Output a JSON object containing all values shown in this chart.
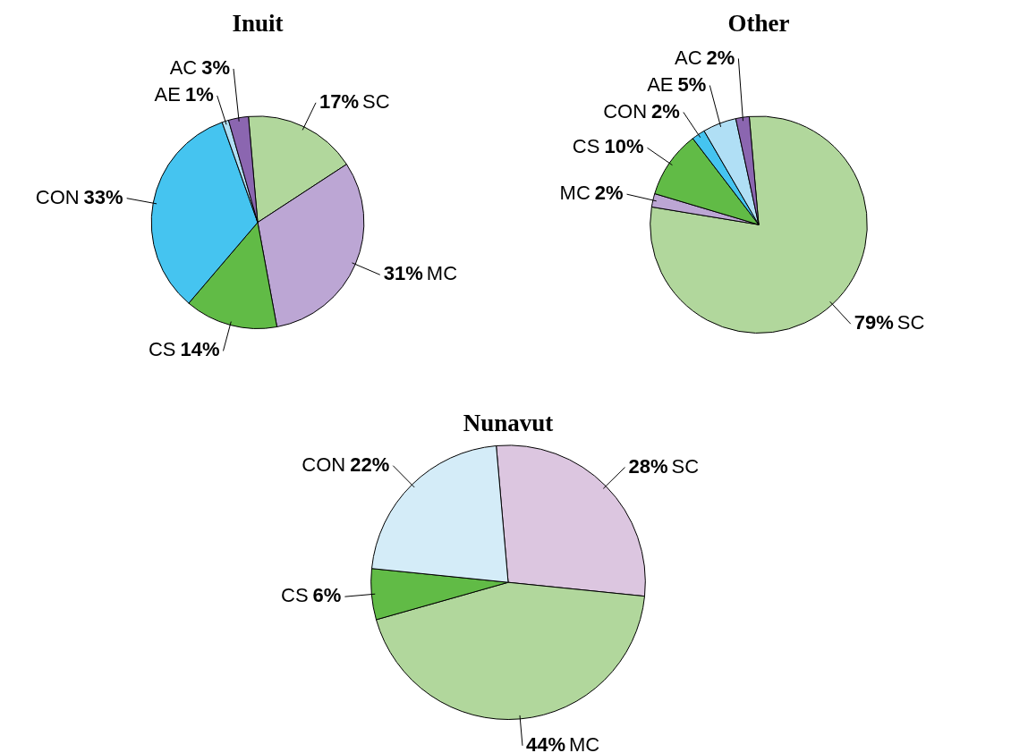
{
  "chart_data": [
    {
      "type": "pie",
      "title": "Inuit",
      "categories": [
        "SC",
        "MC",
        "CS",
        "CON",
        "AE",
        "AC"
      ],
      "values": [
        17,
        31,
        14,
        33,
        1,
        3
      ],
      "colors": [
        "#b1d79c",
        "#bca6d4",
        "#61bb46",
        "#45c4f0",
        "#b0dff5",
        "#8b66b0"
      ],
      "value_labels": [
        "17%",
        "31%",
        "14%",
        "33%",
        "1%",
        "3%"
      ]
    },
    {
      "type": "pie",
      "title": "Other",
      "categories": [
        "SC",
        "MC",
        "CS",
        "CON",
        "AE",
        "AC"
      ],
      "values": [
        79,
        2,
        10,
        2,
        5,
        2
      ],
      "colors": [
        "#b1d79c",
        "#bca6d4",
        "#61bb46",
        "#45c4f0",
        "#b0dff5",
        "#8b66b0"
      ],
      "value_labels": [
        "79%",
        "2%",
        "10%",
        "2%",
        "5%",
        "2%"
      ]
    },
    {
      "type": "pie",
      "title": "Nunavut",
      "categories": [
        "SC",
        "MC",
        "CS",
        "CON"
      ],
      "values": [
        28,
        44,
        6,
        22
      ],
      "colors": [
        "#dcc6e0",
        "#b1d79c",
        "#61bb46",
        "#d4ecf8"
      ],
      "value_labels": [
        "28%",
        "44%",
        "6%",
        "22%"
      ]
    }
  ]
}
